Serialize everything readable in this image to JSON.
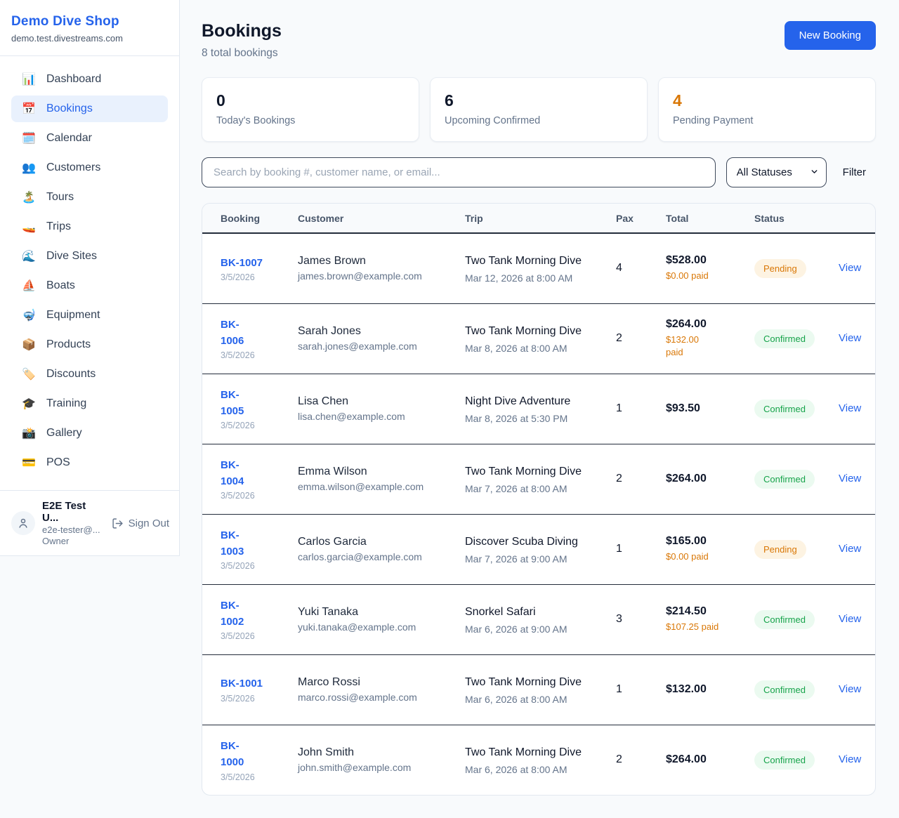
{
  "sidebar": {
    "brand": "Demo Dive Shop",
    "domain": "demo.test.divestreams.com",
    "items": [
      {
        "label": "Dashboard",
        "icon": "📊",
        "icon_name": "dashboard-icon",
        "active": false
      },
      {
        "label": "Bookings",
        "icon": "📅",
        "icon_name": "bookings-icon",
        "active": true
      },
      {
        "label": "Calendar",
        "icon": "🗓️",
        "icon_name": "calendar-icon",
        "active": false
      },
      {
        "label": "Customers",
        "icon": "👥",
        "icon_name": "customers-icon",
        "active": false
      },
      {
        "label": "Tours",
        "icon": "🏝️",
        "icon_name": "tours-icon",
        "active": false
      },
      {
        "label": "Trips",
        "icon": "🚤",
        "icon_name": "trips-icon",
        "active": false
      },
      {
        "label": "Dive Sites",
        "icon": "🌊",
        "icon_name": "dive-sites-icon",
        "active": false
      },
      {
        "label": "Boats",
        "icon": "⛵",
        "icon_name": "boats-icon",
        "active": false
      },
      {
        "label": "Equipment",
        "icon": "🤿",
        "icon_name": "equipment-icon",
        "active": false
      },
      {
        "label": "Products",
        "icon": "📦",
        "icon_name": "products-icon",
        "active": false
      },
      {
        "label": "Discounts",
        "icon": "🏷️",
        "icon_name": "discounts-icon",
        "active": false
      },
      {
        "label": "Training",
        "icon": "🎓",
        "icon_name": "training-icon",
        "active": false
      },
      {
        "label": "Gallery",
        "icon": "📸",
        "icon_name": "gallery-icon",
        "active": false
      },
      {
        "label": "POS",
        "icon": "💳",
        "icon_name": "pos-icon",
        "active": false
      }
    ],
    "user": {
      "name": "E2E Test U...",
      "email": "e2e-tester@...",
      "role": "Owner",
      "sign_out_label": "Sign Out"
    }
  },
  "header": {
    "title": "Bookings",
    "subtitle": "8 total bookings",
    "new_booking_label": "New Booking"
  },
  "stats": [
    {
      "value": "0",
      "label": "Today's Bookings",
      "color": "#0f172a"
    },
    {
      "value": "6",
      "label": "Upcoming Confirmed",
      "color": "#0f172a"
    },
    {
      "value": "4",
      "label": "Pending Payment",
      "color": "#d97706"
    }
  ],
  "toolbar": {
    "search_placeholder": "Search by booking #, customer name, or email...",
    "status_selected": "All Statuses",
    "filter_label": "Filter"
  },
  "table": {
    "columns": [
      "Booking",
      "Customer",
      "Trip",
      "Pax",
      "Total",
      "Status",
      ""
    ],
    "view_label": "View",
    "rows": [
      {
        "id": "BK-1007",
        "date": "3/5/2026",
        "customer": "James Brown",
        "email": "james.brown@example.com",
        "trip": "Two Tank Morning Dive",
        "trip_time": "Mar 12, 2026 at 8:00 AM",
        "pax": "4",
        "total": "$528.00",
        "paid": "$0.00 paid",
        "status": "Pending"
      },
      {
        "id": "BK-\n1006",
        "date": "3/5/2026",
        "customer": "Sarah Jones",
        "email": "sarah.jones@example.com",
        "trip": "Two Tank Morning Dive",
        "trip_time": "Mar 8, 2026 at 8:00 AM",
        "pax": "2",
        "total": "$264.00",
        "paid": "$132.00\npaid",
        "status": "Confirmed"
      },
      {
        "id": "BK-\n1005",
        "date": "3/5/2026",
        "customer": "Lisa Chen",
        "email": "lisa.chen@example.com",
        "trip": "Night Dive Adventure",
        "trip_time": "Mar 8, 2026 at 5:30 PM",
        "pax": "1",
        "total": "$93.50",
        "paid": "",
        "status": "Confirmed"
      },
      {
        "id": "BK-\n1004",
        "date": "3/5/2026",
        "customer": "Emma Wilson",
        "email": "emma.wilson@example.com",
        "trip": "Two Tank Morning Dive",
        "trip_time": "Mar 7, 2026 at 8:00 AM",
        "pax": "2",
        "total": "$264.00",
        "paid": "",
        "status": "Confirmed"
      },
      {
        "id": "BK-\n1003",
        "date": "3/5/2026",
        "customer": "Carlos Garcia",
        "email": "carlos.garcia@example.com",
        "trip": "Discover Scuba Diving",
        "trip_time": "Mar 7, 2026 at 9:00 AM",
        "pax": "1",
        "total": "$165.00",
        "paid": "$0.00 paid",
        "status": "Pending"
      },
      {
        "id": "BK-\n1002",
        "date": "3/5/2026",
        "customer": "Yuki Tanaka",
        "email": "yuki.tanaka@example.com",
        "trip": "Snorkel Safari",
        "trip_time": "Mar 6, 2026 at 9:00 AM",
        "pax": "3",
        "total": "$214.50",
        "paid": "$107.25 paid",
        "status": "Confirmed"
      },
      {
        "id": "BK-1001",
        "date": "3/5/2026",
        "customer": "Marco Rossi",
        "email": "marco.rossi@example.com",
        "trip": "Two Tank Morning Dive",
        "trip_time": "Mar 6, 2026 at 8:00 AM",
        "pax": "1",
        "total": "$132.00",
        "paid": "",
        "status": "Confirmed"
      },
      {
        "id": "BK-\n1000",
        "date": "3/5/2026",
        "customer": "John Smith",
        "email": "john.smith@example.com",
        "trip": "Two Tank Morning Dive",
        "trip_time": "Mar 6, 2026 at 8:00 AM",
        "pax": "2",
        "total": "$264.00",
        "paid": "",
        "status": "Confirmed"
      }
    ]
  },
  "colors": {
    "accent": "#2563eb",
    "pending_text": "#d97706",
    "pending_bg": "#fdf3e2",
    "confirmed_text": "#16a34a",
    "confirmed_bg": "#ebfaf0",
    "page_bg": "#f8fafc"
  }
}
